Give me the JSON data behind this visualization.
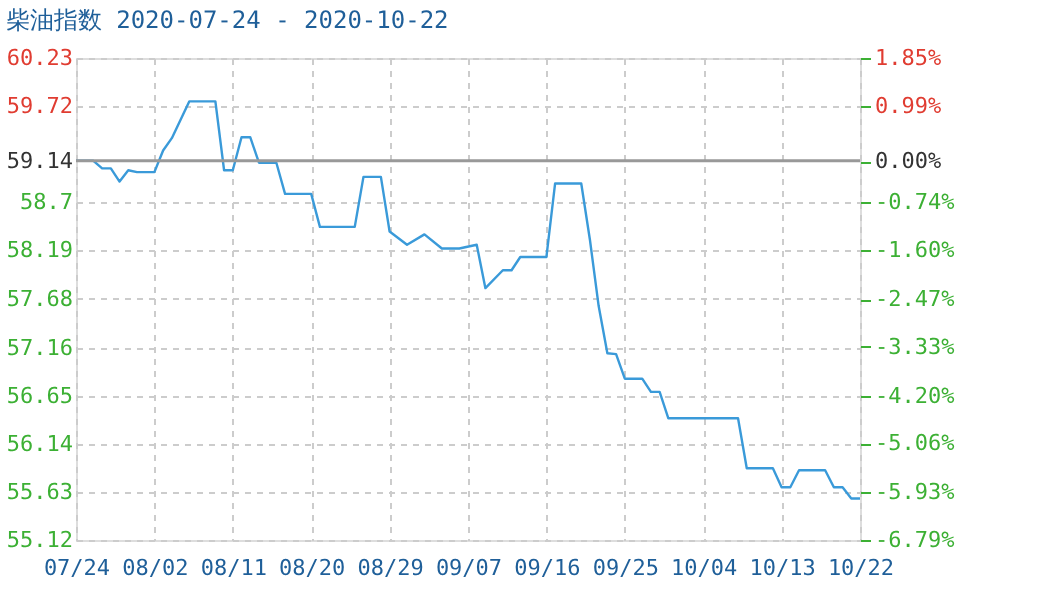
{
  "chart_data": {
    "type": "line",
    "title": "柴油指数 2020-07-24 - 2020-10-22",
    "x": [
      "2020-07-24",
      "2020-07-26",
      "2020-07-27",
      "2020-07-28",
      "2020-07-29",
      "2020-07-30",
      "2020-07-31",
      "2020-08-02",
      "2020-08-03",
      "2020-08-04",
      "2020-08-06",
      "2020-08-09",
      "2020-08-10",
      "2020-08-11",
      "2020-08-12",
      "2020-08-13",
      "2020-08-14",
      "2020-08-16",
      "2020-08-17",
      "2020-08-20",
      "2020-08-21",
      "2020-08-25",
      "2020-08-26",
      "2020-08-28",
      "2020-08-29",
      "2020-08-31",
      "2020-09-02",
      "2020-09-04",
      "2020-09-06",
      "2020-09-08",
      "2020-09-09",
      "2020-09-11",
      "2020-09-12",
      "2020-09-13",
      "2020-09-16",
      "2020-09-17",
      "2020-09-20",
      "2020-09-21",
      "2020-09-22",
      "2020-09-23",
      "2020-09-24",
      "2020-09-25",
      "2020-09-27",
      "2020-09-28",
      "2020-09-29",
      "2020-09-30",
      "2020-10-08",
      "2020-10-09",
      "2020-10-12",
      "2020-10-13",
      "2020-10-14",
      "2020-10-15",
      "2020-10-18",
      "2020-10-19",
      "2020-10-20",
      "2020-10-21",
      "2020-10-22"
    ],
    "series": [
      {
        "color": "#3a9ad9",
        "values": [
          59.14,
          59.14,
          59.06,
          59.06,
          58.92,
          59.04,
          59.02,
          59.02,
          59.25,
          59.38,
          59.77,
          59.77,
          59.04,
          59.04,
          59.39,
          59.39,
          59.12,
          59.12,
          58.79,
          58.79,
          58.44,
          58.44,
          58.97,
          58.97,
          58.39,
          58.25,
          58.36,
          58.21,
          58.21,
          58.25,
          57.79,
          57.98,
          57.98,
          58.12,
          58.12,
          58.9,
          58.9,
          58.3,
          57.6,
          57.1,
          57.09,
          56.83,
          56.83,
          56.69,
          56.69,
          56.41,
          56.41,
          55.88,
          55.88,
          55.68,
          55.68,
          55.86,
          55.86,
          55.68,
          55.68,
          55.56,
          55.56
        ]
      }
    ],
    "xlim": [
      "2020-07-24",
      "2020-10-22"
    ],
    "xticks": [
      {
        "value": "2020-07-24",
        "label": "07/24"
      },
      {
        "value": "2020-08-02",
        "label": "08/02"
      },
      {
        "value": "2020-08-11",
        "label": "08/11"
      },
      {
        "value": "2020-08-20",
        "label": "08/20"
      },
      {
        "value": "2020-08-29",
        "label": "08/29"
      },
      {
        "value": "2020-09-07",
        "label": "09/07"
      },
      {
        "value": "2020-09-16",
        "label": "09/16"
      },
      {
        "value": "2020-09-25",
        "label": "09/25"
      },
      {
        "value": "2020-10-04",
        "label": "10/04"
      },
      {
        "value": "2020-10-13",
        "label": "10/13"
      },
      {
        "value": "2020-10-22",
        "label": "10/22"
      }
    ],
    "ylim": [
      55.12,
      60.23
    ],
    "yticks": [
      55.12,
      55.63,
      56.14,
      56.65,
      57.16,
      57.68,
      58.19,
      58.7,
      59.14,
      59.72,
      60.23
    ],
    "y2lim": [
      -6.79,
      1.85
    ],
    "y2ticks": [
      {
        "value": -6.79,
        "label": "-6.79%"
      },
      {
        "value": -5.93,
        "label": "-5.93%"
      },
      {
        "value": -5.06,
        "label": "-5.06%"
      },
      {
        "value": -4.2,
        "label": "-4.20%"
      },
      {
        "value": -3.33,
        "label": "-3.33%"
      },
      {
        "value": -2.47,
        "label": "-2.47%"
      },
      {
        "value": -1.6,
        "label": "-1.60%"
      },
      {
        "value": -0.74,
        "label": "-0.74%"
      },
      {
        "value": 0,
        "label": "0.00%"
      },
      {
        "value": 0.99,
        "label": "0.99%"
      },
      {
        "value": 1.85,
        "label": "1.85%"
      }
    ],
    "ref_lines": [
      {
        "axis": "y",
        "value": 59.14,
        "color": "#999999"
      }
    ],
    "grid": true,
    "marker": "none",
    "line_style": "solid"
  }
}
